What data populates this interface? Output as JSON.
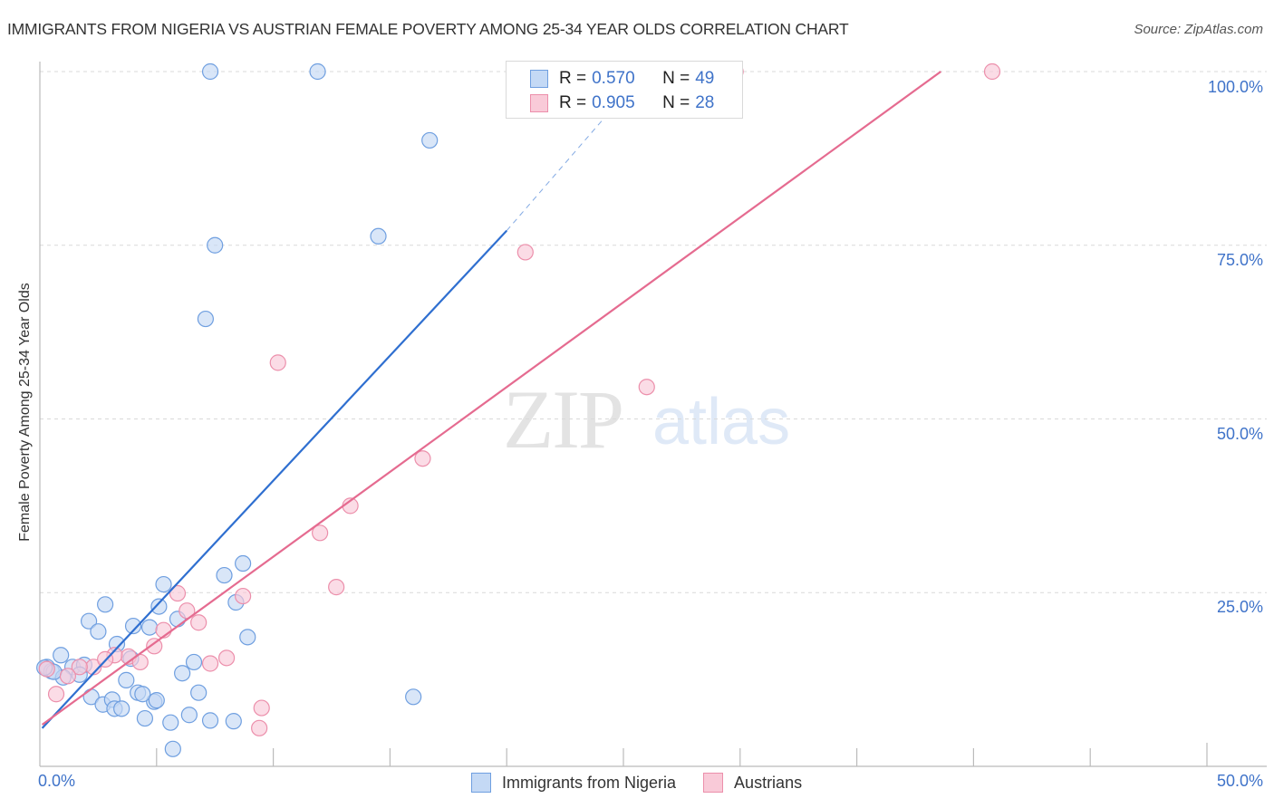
{
  "header": {
    "title": "IMMIGRANTS FROM NIGERIA VS AUSTRIAN FEMALE POVERTY AMONG 25-34 YEAR OLDS CORRELATION CHART",
    "source": "Source: ZipAtlas.com"
  },
  "watermark": {
    "zip": "ZIP",
    "atlas": "atlas"
  },
  "axes": {
    "ylabel": "Female Poverty Among 25-34 Year Olds",
    "yticks": [
      "100.0%",
      "75.0%",
      "50.0%",
      "25.0%"
    ],
    "xtick_left": "0.0%",
    "xtick_right": "50.0%"
  },
  "legend_top": {
    "rows": [
      {
        "r_label": "R =",
        "r_value": "0.570",
        "n_label": "N =",
        "n_value": "49"
      },
      {
        "r_label": "R =",
        "r_value": "0.905",
        "n_label": "N =",
        "n_value": "28"
      }
    ]
  },
  "legend_bottom": {
    "items": [
      {
        "label": "Immigrants from Nigeria"
      },
      {
        "label": "Austrians"
      }
    ]
  },
  "colors": {
    "blue_fill": "#c4d9f5",
    "blue_stroke": "#6f9fe0",
    "blue_line": "#2f6fd0",
    "pink_fill": "#f9cad8",
    "pink_stroke": "#ec8fab",
    "pink_line": "#e56b90",
    "tick_label": "#3f73c9",
    "grid": "#d9d9d9"
  },
  "chart_data": {
    "type": "scatter",
    "title": "IMMIGRANTS FROM NIGERIA VS AUSTRIAN FEMALE POVERTY AMONG 25-34 YEAR OLDS CORRELATION CHART",
    "xlabel": "Immigrants from Nigeria (%)",
    "ylabel": "Female Poverty Among 25-34 Year Olds",
    "xlim": [
      0,
      50
    ],
    "ylim": [
      0,
      100
    ],
    "xticks": [
      "0.0%",
      "50.0%"
    ],
    "yticks": [
      "25.0%",
      "50.0%",
      "75.0%",
      "100.0%"
    ],
    "grid": true,
    "legend_position": "bottom",
    "series": [
      {
        "name": "Immigrants from Nigeria",
        "R": 0.57,
        "N": 49,
        "trendline": {
          "x": [
            0.1,
            20.0
          ],
          "y": [
            5.5,
            77.1
          ],
          "dashed_extension_to": [
            25.9,
            100.0
          ]
        },
        "points": [
          [
            7.3,
            100.0
          ],
          [
            11.9,
            100.0
          ],
          [
            16.7,
            90.1
          ],
          [
            7.5,
            75.0
          ],
          [
            14.5,
            76.3
          ],
          [
            7.1,
            64.4
          ],
          [
            5.3,
            26.2
          ],
          [
            8.7,
            29.2
          ],
          [
            7.9,
            27.5
          ],
          [
            2.8,
            23.3
          ],
          [
            2.1,
            20.9
          ],
          [
            2.5,
            19.4
          ],
          [
            5.1,
            23.0
          ],
          [
            4.7,
            20.0
          ],
          [
            5.9,
            21.2
          ],
          [
            3.3,
            17.6
          ],
          [
            4.0,
            20.2
          ],
          [
            8.4,
            23.6
          ],
          [
            8.9,
            18.6
          ],
          [
            0.9,
            16.0
          ],
          [
            1.4,
            14.3
          ],
          [
            0.3,
            14.3
          ],
          [
            0.5,
            13.7
          ],
          [
            1.9,
            14.6
          ],
          [
            1.7,
            13.2
          ],
          [
            1.0,
            12.8
          ],
          [
            2.2,
            10.0
          ],
          [
            2.7,
            8.9
          ],
          [
            3.1,
            9.6
          ],
          [
            3.7,
            12.4
          ],
          [
            4.2,
            10.6
          ],
          [
            4.9,
            9.3
          ],
          [
            3.2,
            8.3
          ],
          [
            3.5,
            8.3
          ],
          [
            4.4,
            10.4
          ],
          [
            5.0,
            9.5
          ],
          [
            4.5,
            6.9
          ],
          [
            5.6,
            6.3
          ],
          [
            6.4,
            7.4
          ],
          [
            6.8,
            10.6
          ],
          [
            6.6,
            15.0
          ],
          [
            6.1,
            13.4
          ],
          [
            7.3,
            6.6
          ],
          [
            8.3,
            6.5
          ],
          [
            5.7,
            2.5
          ],
          [
            16.0,
            10.0
          ],
          [
            3.9,
            15.5
          ],
          [
            0.6,
            13.6
          ],
          [
            0.2,
            14.2
          ]
        ]
      },
      {
        "name": "Austrians",
        "R": 0.905,
        "N": 28,
        "trendline": {
          "x": [
            0.1,
            38.6
          ],
          "y": [
            6.0,
            100.0
          ]
        },
        "points": [
          [
            29.8,
            100.0
          ],
          [
            40.8,
            100.0
          ],
          [
            20.8,
            74.0
          ],
          [
            10.2,
            58.1
          ],
          [
            26.0,
            54.6
          ],
          [
            16.4,
            44.3
          ],
          [
            13.3,
            37.5
          ],
          [
            12.0,
            33.6
          ],
          [
            12.7,
            25.8
          ],
          [
            8.7,
            24.5
          ],
          [
            5.9,
            24.9
          ],
          [
            6.3,
            22.4
          ],
          [
            6.8,
            20.7
          ],
          [
            5.3,
            19.6
          ],
          [
            4.9,
            17.3
          ],
          [
            8.0,
            15.6
          ],
          [
            7.3,
            14.8
          ],
          [
            3.8,
            15.8
          ],
          [
            4.3,
            15.0
          ],
          [
            3.2,
            16.0
          ],
          [
            2.3,
            14.3
          ],
          [
            1.7,
            14.3
          ],
          [
            0.7,
            10.4
          ],
          [
            1.2,
            13.0
          ],
          [
            9.5,
            8.4
          ],
          [
            9.4,
            5.5
          ],
          [
            0.3,
            14.0
          ],
          [
            2.8,
            15.4
          ]
        ]
      }
    ]
  }
}
